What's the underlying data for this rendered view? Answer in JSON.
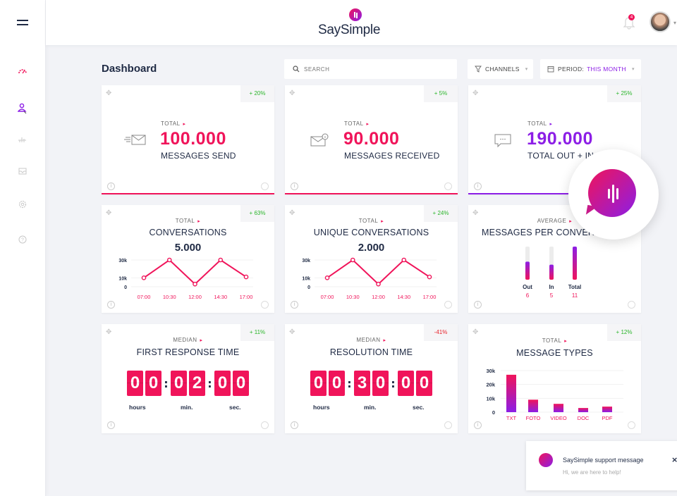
{
  "app": {
    "brand": "SaySimple",
    "notifications_count": "4"
  },
  "sidebar": {
    "items": [
      {
        "name": "dashboard",
        "icon": "gauge-icon",
        "active": true
      },
      {
        "name": "contacts",
        "icon": "user-icon"
      },
      {
        "name": "analytics",
        "icon": "bar-chart-icon"
      },
      {
        "name": "reports",
        "icon": "inbox-icon"
      },
      {
        "name": "settings",
        "icon": "gear-icon"
      },
      {
        "name": "help",
        "icon": "help-icon"
      }
    ]
  },
  "header": {
    "title": "Dashboard"
  },
  "search": {
    "placeholder": "SEARCH"
  },
  "filters": {
    "channels_label": "CHANNELS",
    "period_label": "PERIOD:",
    "period_value": "THIS MONTH"
  },
  "colors": {
    "pink": "#f0145a",
    "purple": "#8c1ee6",
    "green": "#2bb52b",
    "red": "#e8222a"
  },
  "cards": {
    "sent": {
      "label": "TOTAL",
      "value": "100.000",
      "sub": "MESSAGES SEND",
      "delta": "+ 20%"
    },
    "received": {
      "label": "TOTAL",
      "value": "90.000",
      "sub": "MESSAGES RECEIVED",
      "delta": "+ 5%"
    },
    "total": {
      "label": "TOTAL",
      "value": "190.000",
      "sub": "TOTAL OUT + IN",
      "delta": "+ 25%"
    },
    "conversations": {
      "label": "TOTAL",
      "title": "CONVERSATIONS",
      "value": "5.000",
      "delta": "+ 63%"
    },
    "unique": {
      "label": "TOTAL",
      "title": "UNIQUE CONVERSATIONS",
      "value": "2.000",
      "delta": "+ 24%"
    },
    "per_conv": {
      "label": "AVERAGE",
      "title": "MESSAGES PER CONVERSATION",
      "delta": ""
    },
    "first_response": {
      "label": "MEDIAN",
      "title": "FIRST RESPONSE TIME",
      "digits": [
        "0",
        "0",
        "0",
        "2",
        "0",
        "0"
      ],
      "delta": "+ 11%"
    },
    "resolution": {
      "label": "MEDIAN",
      "title": "RESOLUTION TIME",
      "digits": [
        "0",
        "0",
        "3",
        "0",
        "0",
        "0"
      ],
      "delta": "-41%"
    },
    "types": {
      "label": "TOTAL",
      "title": "MESSAGE TYPES",
      "delta": "+ 12%"
    }
  },
  "time_units": {
    "hours": "hours",
    "min": "min.",
    "sec": "sec."
  },
  "chart_data": [
    {
      "type": "line",
      "title": "CONVERSATIONS",
      "categories": [
        "07:00",
        "10:30",
        "12:00",
        "14:30",
        "17:00"
      ],
      "values": [
        10000,
        30000,
        3000,
        30000,
        11000
      ],
      "yticks": [
        "30k",
        "10k",
        "0"
      ],
      "ylim": [
        0,
        30000
      ]
    },
    {
      "type": "line",
      "title": "UNIQUE CONVERSATIONS",
      "categories": [
        "07:00",
        "10:30",
        "12:00",
        "14:30",
        "17:00"
      ],
      "values": [
        10000,
        30000,
        3000,
        30000,
        11000
      ],
      "yticks": [
        "30k",
        "10k",
        "0"
      ],
      "ylim": [
        0,
        30000
      ]
    },
    {
      "type": "bar",
      "title": "MESSAGES PER CONVERSATION",
      "categories": [
        "Out",
        "In",
        "Total"
      ],
      "values": [
        6,
        5,
        11
      ],
      "ylim": [
        0,
        11
      ]
    },
    {
      "type": "bar",
      "title": "MESSAGE TYPES",
      "categories": [
        "TXT",
        "FOTO",
        "VIDEO",
        "DOC",
        "PDF"
      ],
      "values": [
        27000,
        9000,
        6000,
        3000,
        4000
      ],
      "yticks": [
        "30k",
        "20k",
        "10k",
        "0"
      ],
      "ylim": [
        0,
        30000
      ]
    }
  ],
  "toast": {
    "title": "SaySimple support message",
    "message": "Hi, we are here to help!",
    "close": "×"
  }
}
